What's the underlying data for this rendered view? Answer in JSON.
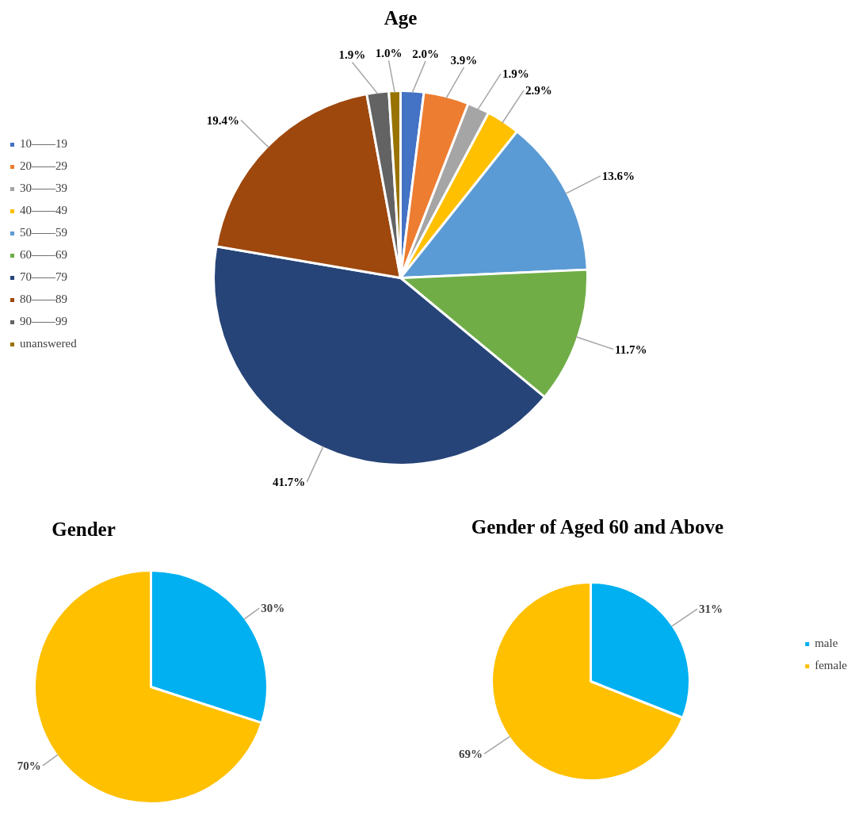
{
  "chart_data": [
    {
      "type": "pie",
      "title": "Age",
      "categories": [
        "10——19",
        "20——29",
        "30——39",
        "40——49",
        "50——59",
        "60——69",
        "70——79",
        "80——89",
        "90——99",
        "unanswered"
      ],
      "values": [
        2.0,
        3.9,
        1.9,
        2.9,
        13.6,
        11.7,
        41.7,
        19.4,
        1.9,
        1.0
      ],
      "colors": [
        "#4472c4",
        "#ed7d31",
        "#a5a5a5",
        "#ffc000",
        "#5b9bd5",
        "#70ad47",
        "#264478",
        "#9e480e",
        "#636363",
        "#997300"
      ],
      "value_labels": [
        "2.0%",
        "3.9%",
        "1.9%",
        "2.9%",
        "13.6%",
        "11.7%",
        "41.7%",
        "19.4%",
        "1.9%",
        "1.0%"
      ],
      "legend": "left"
    },
    {
      "type": "pie",
      "title": "Gender",
      "categories": [
        null,
        null
      ],
      "values": [
        30,
        70
      ],
      "colors": [
        "#00b0f0",
        "#ffc000"
      ],
      "value_labels": [
        "30%",
        "70%"
      ],
      "legend": false
    },
    {
      "type": "pie",
      "title": "Gender of Aged 60 and Above",
      "categories": [
        "male",
        "female"
      ],
      "values": [
        31,
        69
      ],
      "colors": [
        "#00b0f0",
        "#ffc000"
      ],
      "value_labels": [
        "31%",
        "69%"
      ],
      "legend": "right"
    }
  ]
}
